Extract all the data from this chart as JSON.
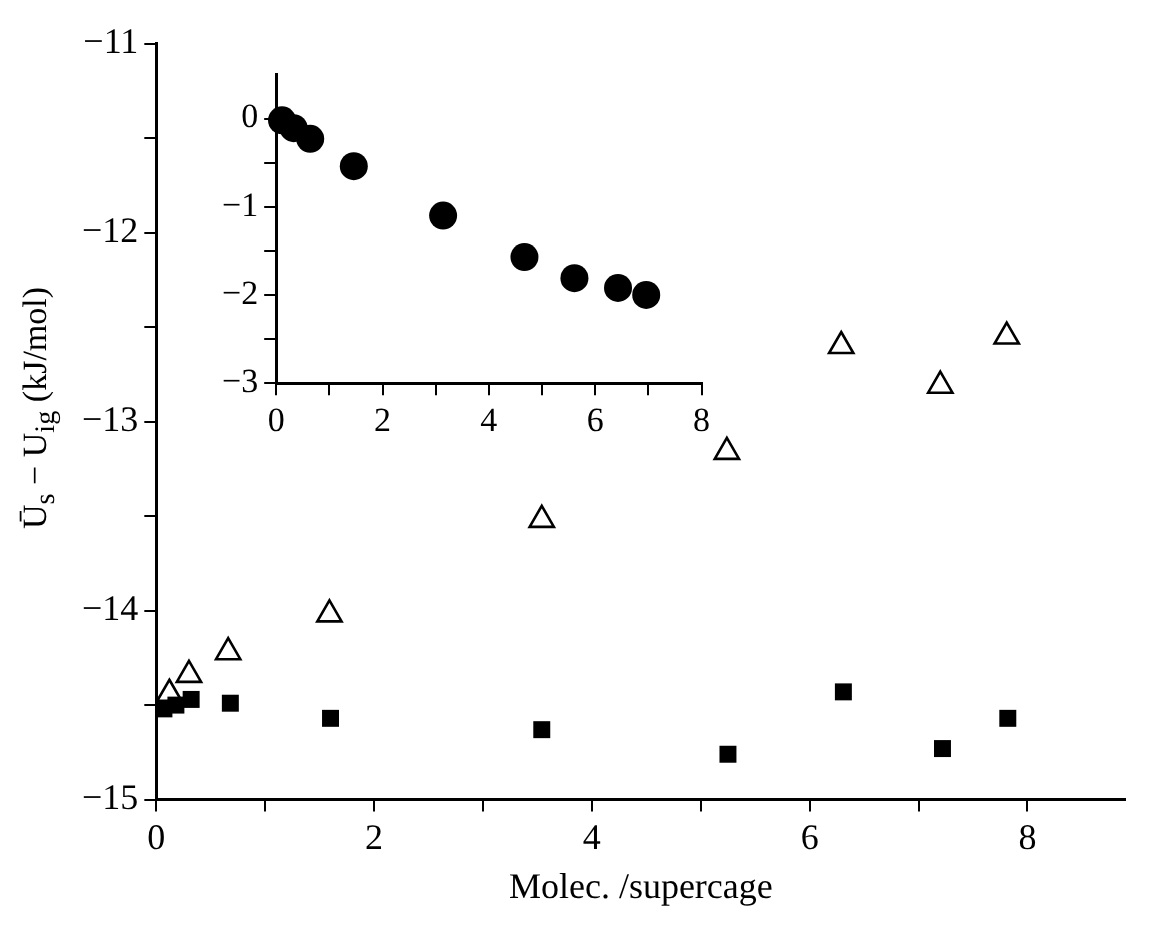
{
  "chart_data": [
    {
      "type": "scatter",
      "xlabel": "Molec. /supercage",
      "ylabel": "Ū$_{s}$ − U$_{ig}$ (kJ/mol)",
      "xlim": [
        0,
        8.9
      ],
      "ylim": [
        -15,
        -11
      ],
      "xticks": [
        0,
        {
          "value": 1,
          "label": null
        },
        2,
        {
          "value": 3,
          "label": null
        },
        4,
        {
          "value": 5,
          "label": null
        },
        6,
        {
          "value": 7,
          "label": null
        },
        8
      ],
      "yticks": [
        -15,
        {
          "value": -14.5,
          "label": null
        },
        -14,
        {
          "value": -13.5,
          "label": null
        },
        -13,
        {
          "value": -12.5,
          "label": null
        },
        -12,
        {
          "value": -11.5,
          "label": null
        },
        -11
      ],
      "grid": false,
      "legend": false,
      "series": [
        {
          "color": "#000000",
          "marker": "triangle",
          "x": [
            0.12,
            0.3,
            0.66,
            1.59,
            3.54,
            5.24,
            6.29,
            7.2,
            7.81
          ],
          "values": [
            -14.44,
            -14.34,
            -14.22,
            -14.02,
            -13.52,
            -13.16,
            -12.6,
            -12.81,
            -12.55
          ]
        },
        {
          "color": "#000000",
          "marker": "square",
          "x": [
            0.07,
            0.18,
            0.32,
            0.68,
            1.6,
            3.54,
            5.25,
            6.31,
            7.22,
            7.82
          ],
          "values": [
            -14.52,
            -14.5,
            -14.47,
            -14.49,
            -14.57,
            -14.63,
            -14.76,
            -14.43,
            -14.73,
            -14.57
          ]
        }
      ]
    },
    {
      "type": "scatter",
      "xlim": [
        0,
        8
      ],
      "ylim": [
        -3,
        0.5
      ],
      "xticks": [
        0,
        {
          "value": 1,
          "label": null
        },
        2,
        {
          "value": 3,
          "label": null
        },
        4,
        {
          "value": 5,
          "label": null
        },
        6,
        {
          "value": 7,
          "label": null
        },
        8
      ],
      "yticks": [
        -3,
        {
          "value": -2.5,
          "label": null
        },
        -2,
        {
          "value": -1.5,
          "label": null
        },
        -1,
        {
          "value": -0.5,
          "label": null
        },
        0
      ],
      "grid": false,
      "legend": false,
      "series": [
        {
          "color": "#000000",
          "marker": "circle",
          "x": [
            0.11,
            0.33,
            0.64,
            1.46,
            3.14,
            4.67,
            5.61,
            6.43,
            6.96
          ],
          "values": [
            -0.02,
            -0.11,
            -0.23,
            -0.54,
            -1.1,
            -1.57,
            -1.81,
            -1.92,
            -2.0
          ]
        }
      ]
    }
  ]
}
